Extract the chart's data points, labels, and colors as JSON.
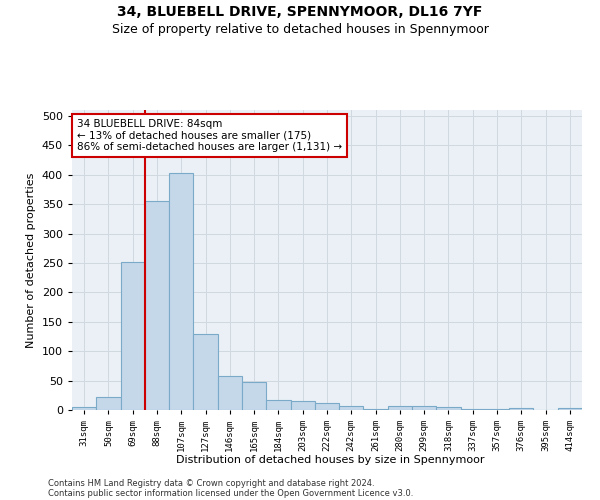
{
  "title1": "34, BLUEBELL DRIVE, SPENNYMOOR, DL16 7YF",
  "title2": "Size of property relative to detached houses in Spennymoor",
  "xlabel": "Distribution of detached houses by size in Spennymoor",
  "ylabel": "Number of detached properties",
  "categories": [
    "31sqm",
    "50sqm",
    "69sqm",
    "88sqm",
    "107sqm",
    "127sqm",
    "146sqm",
    "165sqm",
    "184sqm",
    "203sqm",
    "222sqm",
    "242sqm",
    "261sqm",
    "280sqm",
    "299sqm",
    "318sqm",
    "337sqm",
    "357sqm",
    "376sqm",
    "395sqm",
    "414sqm"
  ],
  "values": [
    5,
    22,
    252,
    355,
    403,
    130,
    57,
    48,
    17,
    15,
    12,
    6,
    1,
    6,
    6,
    5,
    1,
    2,
    3,
    0,
    3
  ],
  "bar_color": "#c5d8ea",
  "bar_edge_color": "#7aaac8",
  "vline_x": 2.5,
  "vline_color": "#cc0000",
  "annotation_text": "34 BLUEBELL DRIVE: 84sqm\n← 13% of detached houses are smaller (175)\n86% of semi-detached houses are larger (1,131) →",
  "annotation_box_color": "white",
  "annotation_box_edge_color": "#cc0000",
  "ylim": [
    0,
    510
  ],
  "yticks": [
    0,
    50,
    100,
    150,
    200,
    250,
    300,
    350,
    400,
    450,
    500
  ],
  "footer1": "Contains HM Land Registry data © Crown copyright and database right 2024.",
  "footer2": "Contains public sector information licensed under the Open Government Licence v3.0.",
  "bg_color": "white",
  "plot_bg_color": "#eaf0f6",
  "grid_color": "#d0d8e0"
}
